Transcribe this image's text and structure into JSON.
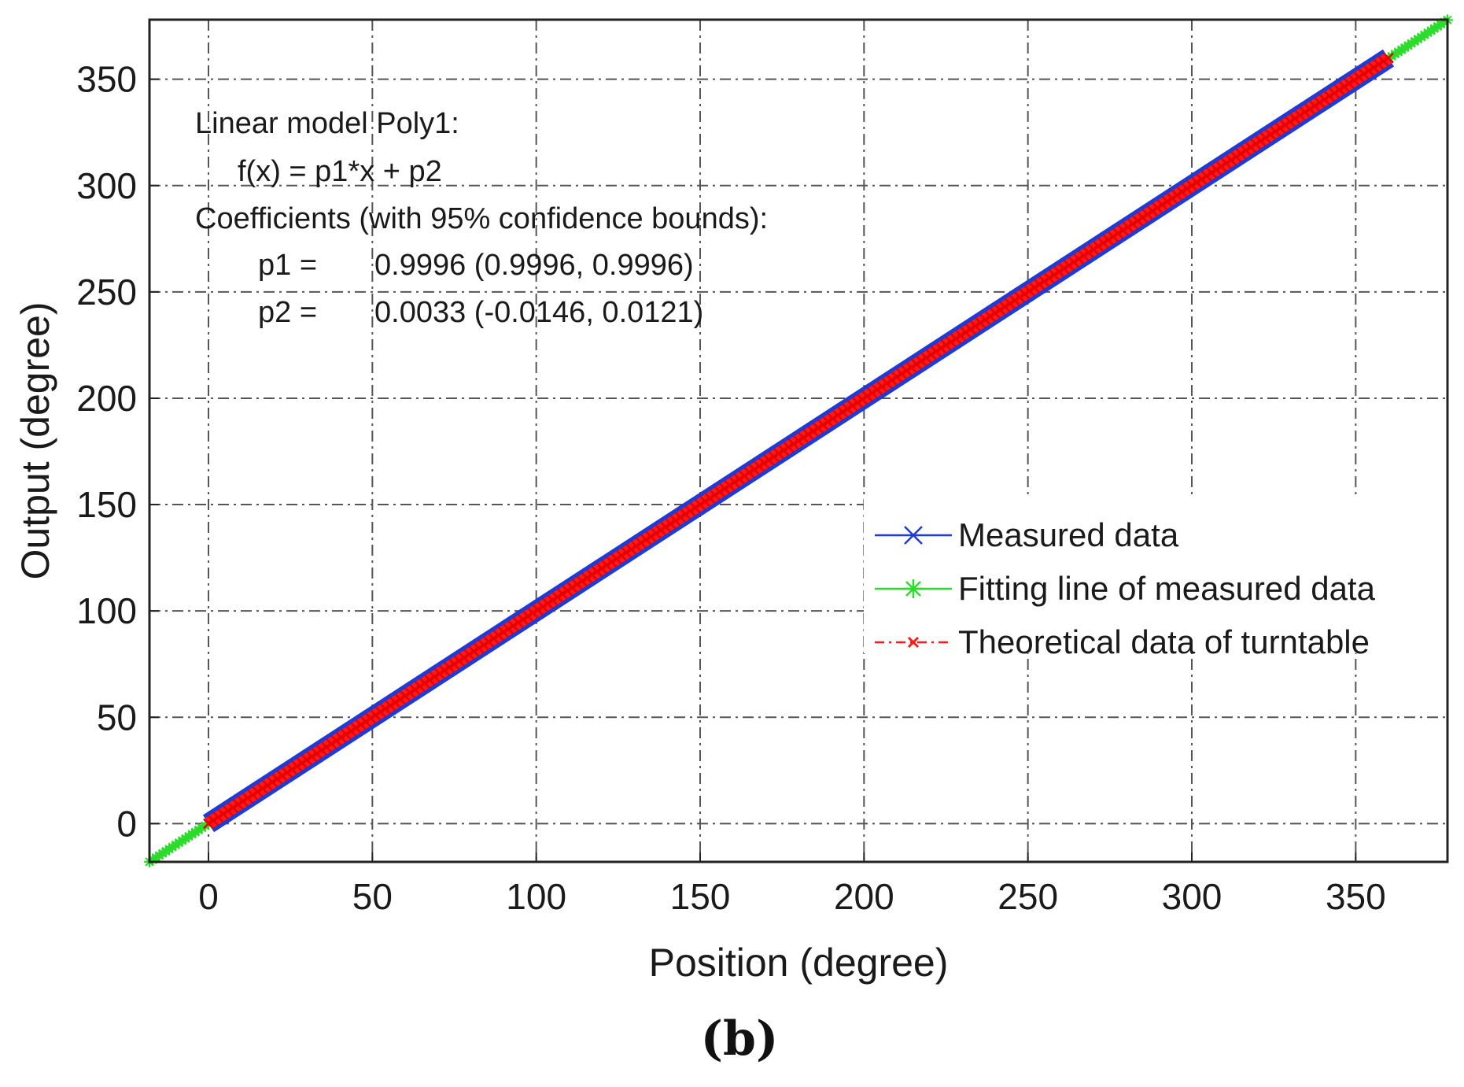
{
  "chart_data": {
    "type": "line",
    "xlabel": "Position (degree)",
    "ylabel": "Output (degree)",
    "xlim": [
      -18,
      378
    ],
    "ylim": [
      -18,
      378
    ],
    "xticks": [
      0,
      50,
      100,
      150,
      200,
      250,
      300,
      350
    ],
    "yticks": [
      0,
      50,
      100,
      150,
      200,
      250,
      300,
      350
    ],
    "xtick_labels": [
      "0",
      "50",
      "100",
      "150",
      "200",
      "250",
      "300",
      "350"
    ],
    "ytick_labels": [
      "0",
      "50",
      "100",
      "150",
      "200",
      "250",
      "300",
      "350"
    ],
    "grid": true,
    "legend_position": "center-right",
    "series": [
      {
        "name": "Measured data",
        "color": "#1f3bd6",
        "marker": "x",
        "line": "solid",
        "x": [
          0,
          360
        ],
        "y": [
          0,
          360
        ]
      },
      {
        "name": "Fitting line of measured data",
        "color": "#2bdc2b",
        "marker": "*",
        "line": "solid",
        "x": [
          -18,
          378
        ],
        "y": [
          -17.99,
          377.85
        ]
      },
      {
        "name": "Theoretical data of turntable",
        "color": "#ff1a1a",
        "marker": "x",
        "line": "dash-dot",
        "x": [
          0,
          360
        ],
        "y": [
          0,
          360
        ]
      }
    ],
    "annotation": {
      "lines": [
        "Linear model Poly1:",
        "f(x) = p1*x + p2",
        "Coefficients (with 95% confidence bounds):",
        "p1 =",
        "0.9996  (0.9996, 0.9996)",
        "p2 =",
        "0.0033  (-0.0146, 0.0121)"
      ]
    },
    "panel_label": "(b)"
  }
}
